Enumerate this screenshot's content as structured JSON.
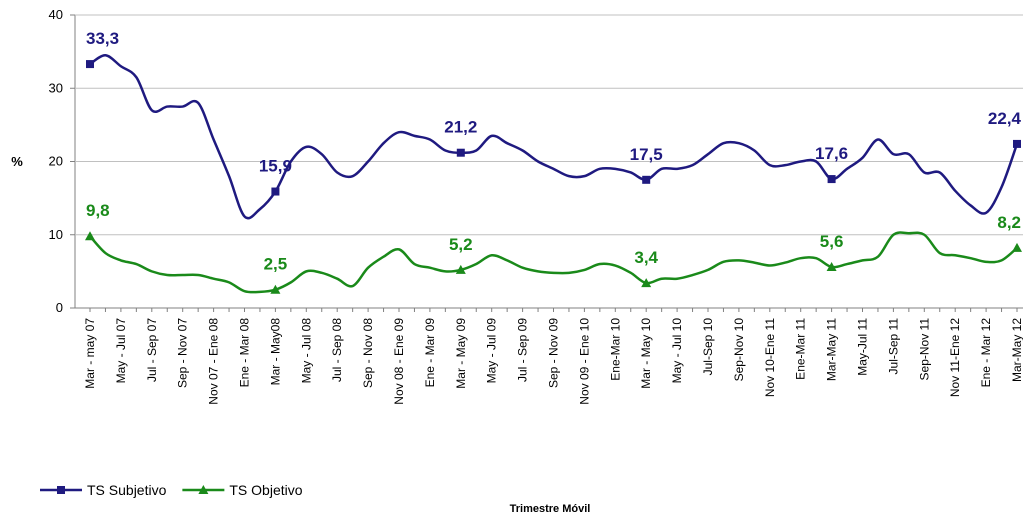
{
  "chart_data": {
    "type": "line",
    "y_label": "%",
    "x_label": "Trimestre Móvil",
    "categories": [
      "Mar - may 07",
      null,
      "May - Jul 07",
      null,
      "Jul - Sep 07",
      null,
      "Sep - Nov 07",
      null,
      "Nov 07 - Ene 08",
      null,
      "Ene - Mar 08",
      null,
      "Mar - May08",
      null,
      "May - Jul 08",
      null,
      "Jul - Sep 08",
      null,
      "Sep - Nov 08",
      null,
      "Nov 08 - Ene 09",
      null,
      "Ene - Mar 09",
      null,
      "Mar - May 09",
      null,
      "May - Jul 09",
      null,
      "Jul - Sep 09",
      null,
      "Sep - Nov 09",
      null,
      "Nov 09 - Ene 10",
      null,
      "Ene-Mar 10",
      null,
      "Mar - May 10",
      null,
      "May - Jul 10",
      null,
      "Jul-Sep 10",
      null,
      "Sep-Nov 10",
      null,
      "Nov 10-Ene 11",
      null,
      "Ene-Mar 11",
      null,
      "Mar-May 11",
      null,
      "May-Jul 11",
      null,
      "Jul-Sep 11",
      null,
      "Sep-Nov 11",
      null,
      "Nov 11-Ene 12",
      null,
      "Ene - Mar 12",
      null,
      "Mar-May 12"
    ],
    "series": [
      {
        "name": "TS Subjetivo",
        "color": "#1f1a80",
        "marker": "square",
        "values": [
          33.3,
          34.5,
          33,
          31.5,
          27,
          27.5,
          27.5,
          28,
          23,
          18,
          12.5,
          13.5,
          15.9,
          20,
          22,
          21,
          18.5,
          18,
          20,
          22.5,
          24,
          23.5,
          23,
          21.5,
          21.2,
          21.5,
          23.5,
          22.5,
          21.5,
          20,
          19,
          18,
          18,
          19,
          19,
          18.5,
          17.5,
          19,
          19,
          19.5,
          21,
          22.5,
          22.5,
          21.5,
          19.5,
          19.5,
          20,
          20,
          17.6,
          19,
          20.5,
          23,
          21,
          21,
          18.5,
          18.5,
          16,
          14,
          13,
          16.5,
          22.4
        ],
        "value_labels": [
          "33,3",
          null,
          null,
          null,
          null,
          null,
          null,
          null,
          null,
          null,
          null,
          null,
          "15,9",
          null,
          null,
          null,
          null,
          null,
          null,
          null,
          null,
          null,
          null,
          null,
          "21,2",
          null,
          null,
          null,
          null,
          null,
          null,
          null,
          null,
          null,
          null,
          null,
          "17,5",
          null,
          null,
          null,
          null,
          null,
          null,
          null,
          null,
          null,
          null,
          null,
          "17,6",
          null,
          null,
          null,
          null,
          null,
          null,
          null,
          null,
          null,
          null,
          null,
          "22,4"
        ]
      },
      {
        "name": "TS Objetivo",
        "color": "#1a8a1a",
        "marker": "triangle",
        "values": [
          9.8,
          7.5,
          6.5,
          6,
          5,
          4.5,
          4.5,
          4.5,
          4,
          3.5,
          2.3,
          2.2,
          2.5,
          3.5,
          5,
          4.8,
          4,
          3,
          5.5,
          7,
          8,
          6,
          5.5,
          5,
          5.2,
          6,
          7.2,
          6.5,
          5.5,
          5,
          4.8,
          4.8,
          5.2,
          6,
          5.8,
          4.8,
          3.4,
          4,
          4,
          4.5,
          5.2,
          6.3,
          6.5,
          6.2,
          5.8,
          6.2,
          6.8,
          6.8,
          5.6,
          6,
          6.5,
          7,
          10,
          10.2,
          10,
          7.5,
          7.2,
          6.8,
          6.3,
          6.5,
          8.2
        ],
        "value_labels": [
          "9,8",
          null,
          null,
          null,
          null,
          null,
          null,
          null,
          null,
          null,
          null,
          null,
          "2,5",
          null,
          null,
          null,
          null,
          null,
          null,
          null,
          null,
          null,
          null,
          null,
          "5,2",
          null,
          null,
          null,
          null,
          null,
          null,
          null,
          null,
          null,
          null,
          null,
          "3,4",
          null,
          null,
          null,
          null,
          null,
          null,
          null,
          null,
          null,
          null,
          null,
          "5,6",
          null,
          null,
          null,
          null,
          null,
          null,
          null,
          null,
          null,
          null,
          null,
          "8,2"
        ]
      }
    ],
    "ylim": [
      0,
      40
    ],
    "yticks": [
      0,
      10,
      20,
      30,
      40
    ],
    "grid": true,
    "legend": "bottom-left"
  }
}
